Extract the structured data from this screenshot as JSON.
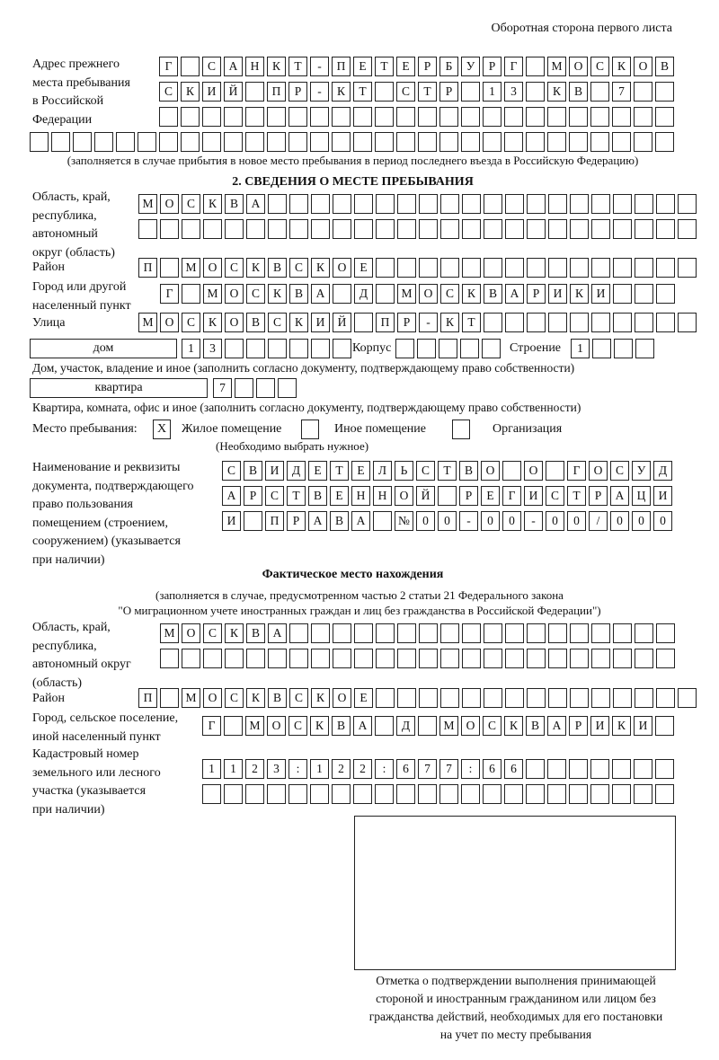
{
  "header": "Оборотная сторона первого листа",
  "prev_address": {
    "label": [
      "Адрес прежнего",
      "места пребывания",
      "в Российской",
      "Федерации"
    ],
    "rows": [
      "Г САНКТ-ПЕТЕРБУРГ МОСКОВ",
      "СКИЙ ПР-КТ СТР 13 КВ 7  ",
      "                        ",
      "                              "
    ],
    "note": "(заполняется в случае прибытия в новое место пребывания в период последнего въезда в Российскую Федерацию)"
  },
  "section2": {
    "title": "2. СВЕДЕНИЯ О МЕСТЕ ПРЕБЫВАНИЯ",
    "region_label": [
      "Область, край,",
      "республика,",
      "автономный",
      "округ (область)"
    ],
    "region_rows": [
      "МОСКВА                    ",
      "                          "
    ],
    "district_label": "Район",
    "district_row": "П МОСКВСКОЕ               ",
    "city_label": [
      "Город или другой",
      "населенный пункт"
    ],
    "city_row": "Г МОСКВА Д МОСКВАРИКИ   ",
    "street_label": "Улица",
    "street_row": "МОСКОВСКИЙ ПР-КТ          ",
    "house_type": "дом",
    "house_row": "13      ",
    "korpus_label": "Корпус",
    "korpus_row": "     ",
    "building_label": "Строение",
    "building_row": "1   ",
    "house_note": "Дом, участок, владение и иное (заполнить согласно документу, подтверждающему право собственности)",
    "flat_type": "квартира",
    "flat_row": "7   ",
    "flat_note": "Квартира, комната, офис и иное (заполнить согласно документу, подтверждающему право собственности)",
    "stay_label": "Место пребывания:",
    "options": [
      {
        "label": "Жилое помещение",
        "mark": "X"
      },
      {
        "label": "Иное помещение",
        "mark": ""
      },
      {
        "label": "Организация",
        "mark": ""
      }
    ],
    "choose_note": "(Необходимо выбрать нужное)",
    "doc_label": [
      "Наименование и реквизиты",
      "документа, подтверждающего",
      "право пользования",
      "помещением (строением,",
      "сооружением) (указывается",
      "при наличии)"
    ],
    "doc_rows": [
      "СВИДЕТЕЛЬСТВО О ГОСУД",
      "АРСТВЕННОЙ РЕГИСТРАЦИ",
      "И ПРАВА №00-00-00/000"
    ]
  },
  "actual": {
    "title": "Фактическое место нахождения",
    "note": [
      "(заполняется в случае, предусмотренном частью 2 статьи 21 Федерального закона",
      "\"О миграционном учете иностранных граждан и лиц без гражданства в Российской Федерации\")"
    ],
    "region_label": [
      "Область, край,",
      "республика,",
      "автономный округ",
      "(область)"
    ],
    "region_rows": [
      "МОСКВА                  ",
      "                        "
    ],
    "district_label": "Район",
    "district_row": "П МОСКВСКОЕ               ",
    "city_label": [
      "Город, сельское поселение,",
      "иной населенный пункт"
    ],
    "city_row": "Г МОСКВА Д МОСКВАРИКИ ",
    "cadastre_label": [
      "Кадастровый номер",
      "земельного или лесного",
      "участка (указывается",
      "при наличии)"
    ],
    "cadastre_rows": [
      "1123:122:677:66       ",
      "                      "
    ]
  },
  "stamp_caption": [
    "Отметка о подтверждении выполнения принимающей",
    "стороной и иностранным гражданином или лицом без",
    "гражданства действий, необходимых для его постановки",
    "на учет по месту пребывания"
  ]
}
